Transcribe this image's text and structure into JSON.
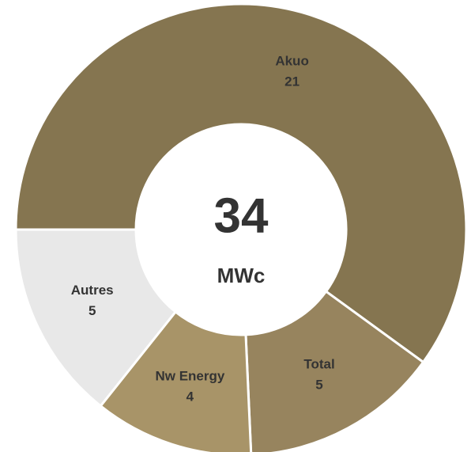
{
  "chart_data": {
    "type": "donut",
    "center_value": "34",
    "center_unit": "MWc",
    "categories": [
      "Akuo",
      "Total",
      "Nw Energy",
      "Autres"
    ],
    "values": [
      21,
      5,
      4,
      5
    ],
    "colors": [
      "#857550",
      "#97845e",
      "#a89468",
      "#e8e8e8"
    ]
  }
}
